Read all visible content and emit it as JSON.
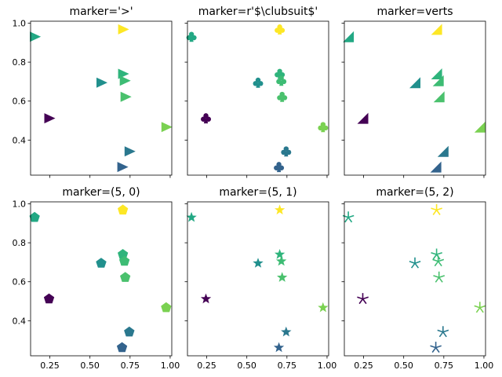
{
  "chart_data": {
    "type": "scatter",
    "layout": "2x3 small multiples, shared axes",
    "grid": false,
    "xlim": [
      0.13,
      1.01
    ],
    "ylim": [
      0.22,
      1.01
    ],
    "xticks": [
      0.25,
      0.5,
      0.75,
      1.0
    ],
    "xtick_labels": [
      "0.25",
      "0.50",
      "0.75",
      "1.00"
    ],
    "yticks": [
      0.4,
      0.6,
      0.8,
      1.0
    ],
    "ytick_labels": [
      "0.4",
      "0.6",
      "0.8",
      "1.0"
    ],
    "colormap": "viridis",
    "points": [
      {
        "x": 0.155,
        "y": 0.93,
        "c": 0.62
      },
      {
        "x": 0.245,
        "y": 0.512,
        "c": 0.0
      },
      {
        "x": 0.57,
        "y": 0.695,
        "c": 0.52
      },
      {
        "x": 0.7,
        "y": 0.262,
        "c": 0.28
      },
      {
        "x": 0.705,
        "y": 0.968,
        "c": 1.0
      },
      {
        "x": 0.705,
        "y": 0.74,
        "c": 0.68
      },
      {
        "x": 0.715,
        "y": 0.705,
        "c": 0.72
      },
      {
        "x": 0.72,
        "y": 0.622,
        "c": 0.76
      },
      {
        "x": 0.745,
        "y": 0.342,
        "c": 0.36
      },
      {
        "x": 0.975,
        "y": 0.467,
        "c": 0.88
      }
    ],
    "palette": {
      "0.00": "#440154",
      "0.28": "#33638d",
      "0.36": "#2a788e",
      "0.52": "#21908d",
      "0.62": "#22a884",
      "0.68": "#2fb47c",
      "0.72": "#3dbc74",
      "0.76": "#4ac16d",
      "0.88": "#7ad151",
      "1.00": "#fde725"
    },
    "panels": [
      {
        "title": "marker='>'",
        "marker": "triangle-right"
      },
      {
        "title": "marker=r'$\\clubsuit$'",
        "marker": "club"
      },
      {
        "title": "marker=verts",
        "marker": "verts-triangle"
      },
      {
        "title": "marker=(5, 0)",
        "marker": "pentagon"
      },
      {
        "title": "marker=(5, 1)",
        "marker": "star"
      },
      {
        "title": "marker=(5, 2)",
        "marker": "asterisk"
      }
    ]
  }
}
